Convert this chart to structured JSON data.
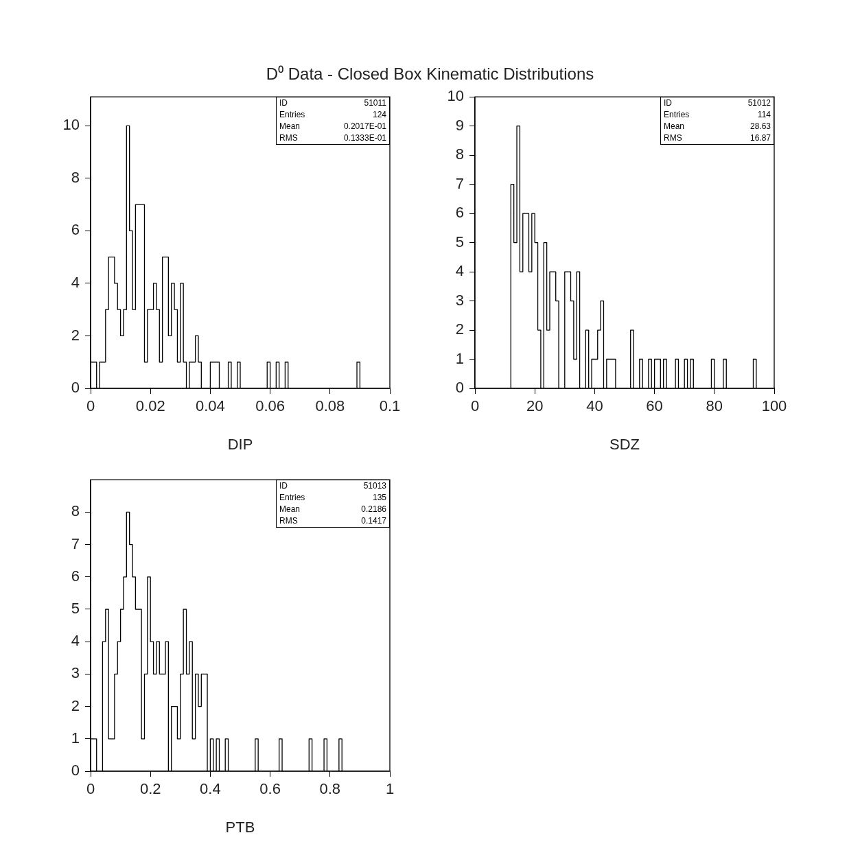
{
  "chart_data": [
    {
      "type": "histogram",
      "title": "D⁰ Data - Closed Box Kinematic Distributions",
      "xlabel": "DIP",
      "color": "#000000",
      "bins": [
        0,
        0.001,
        0.002,
        0.003,
        0.004,
        0.005,
        0.006,
        0.007,
        0.008,
        0.009,
        0.01,
        0.011,
        0.012,
        0.013,
        0.014,
        0.015,
        0.016,
        0.017,
        0.018,
        0.019,
        0.02,
        0.021,
        0.022,
        0.023,
        0.024,
        0.025,
        0.026,
        0.027,
        0.028,
        0.029,
        0.03,
        0.031,
        0.032,
        0.033,
        0.034,
        0.035,
        0.036,
        0.037,
        0.038,
        0.039,
        0.04,
        0.041,
        0.042,
        0.043,
        0.044,
        0.045,
        0.046,
        0.047,
        0.048,
        0.049,
        0.05,
        0.051,
        0.052,
        0.053,
        0.054,
        0.055,
        0.056,
        0.057,
        0.058,
        0.059,
        0.06,
        0.061,
        0.062,
        0.063,
        0.064,
        0.065,
        0.066,
        0.067,
        0.068,
        0.069,
        0.07,
        0.071,
        0.072,
        0.073,
        0.074,
        0.075,
        0.076,
        0.077,
        0.078,
        0.079,
        0.08,
        0.081,
        0.082,
        0.083,
        0.084,
        0.085,
        0.086,
        0.087,
        0.088,
        0.089,
        0.09,
        0.091,
        0.092,
        0.093,
        0.094,
        0.095,
        0.096,
        0.097,
        0.098,
        0.099,
        0.1
      ],
      "values": [
        1,
        1,
        0,
        1,
        1,
        3,
        5,
        5,
        4,
        3,
        2,
        3,
        10,
        6,
        3,
        7,
        7,
        7,
        1,
        3,
        3,
        4,
        3,
        1,
        5,
        5,
        2,
        4,
        3,
        1,
        4,
        1,
        0,
        1,
        1,
        2,
        1,
        0,
        0,
        0,
        1,
        1,
        1,
        0,
        0,
        0,
        1,
        0,
        0,
        1,
        0,
        0,
        0,
        0,
        0,
        0,
        0,
        0,
        0,
        1,
        0,
        0,
        1,
        0,
        0,
        1,
        0,
        0,
        0,
        0,
        0,
        0,
        0,
        0,
        0,
        0,
        0,
        0,
        0,
        0,
        0,
        0,
        0,
        0,
        0,
        0,
        0,
        0,
        0,
        1,
        0,
        0,
        0,
        0,
        0,
        0,
        0,
        0,
        0,
        0
      ],
      "xlim": [
        0,
        0.1
      ],
      "xticks": [
        0,
        0.02,
        0.04,
        0.06,
        0.08,
        0.1
      ],
      "ylim": [
        0,
        11.1
      ],
      "yticks": [
        0,
        2,
        4,
        6,
        8,
        10
      ],
      "annotations": [
        "ID 51011",
        "Entries 124",
        "Mean 0.2017E-01",
        "RMS 0.1333E-01"
      ]
    },
    {
      "type": "histogram",
      "xlabel": "SDZ",
      "color": "#000000",
      "bins": [
        0,
        1,
        2,
        3,
        4,
        5,
        6,
        7,
        8,
        9,
        10,
        11,
        12,
        13,
        14,
        15,
        16,
        17,
        18,
        19,
        20,
        21,
        22,
        23,
        24,
        25,
        26,
        27,
        28,
        29,
        30,
        31,
        32,
        33,
        34,
        35,
        36,
        37,
        38,
        39,
        40,
        41,
        42,
        43,
        44,
        45,
        46,
        47,
        48,
        49,
        50,
        51,
        52,
        53,
        54,
        55,
        56,
        57,
        58,
        59,
        60,
        61,
        62,
        63,
        64,
        65,
        66,
        67,
        68,
        69,
        70,
        71,
        72,
        73,
        74,
        75,
        76,
        77,
        78,
        79,
        80,
        81,
        82,
        83,
        84,
        85,
        86,
        87,
        88,
        89,
        90,
        91,
        92,
        93,
        94,
        95,
        96,
        97,
        98,
        99,
        100
      ],
      "values": [
        0,
        0,
        0,
        0,
        0,
        0,
        0,
        0,
        0,
        0,
        0,
        0,
        7,
        5,
        9,
        4,
        6,
        6,
        4,
        6,
        5,
        2,
        0,
        5,
        2,
        4,
        4,
        3,
        0,
        0,
        4,
        4,
        3,
        1,
        4,
        0,
        0,
        2,
        0,
        1,
        1,
        2,
        3,
        0,
        1,
        1,
        1,
        0,
        0,
        0,
        0,
        0,
        2,
        0,
        0,
        1,
        0,
        0,
        1,
        0,
        1,
        1,
        0,
        1,
        0,
        0,
        0,
        1,
        0,
        0,
        1,
        0,
        1,
        0,
        0,
        0,
        0,
        0,
        0,
        1,
        0,
        0,
        0,
        1,
        0,
        0,
        0,
        0,
        0,
        0,
        0,
        0,
        0,
        1,
        0,
        0,
        0,
        0,
        0,
        0
      ],
      "xlim": [
        0,
        100
      ],
      "xticks": [
        0,
        20,
        40,
        60,
        80,
        100
      ],
      "ylim": [
        0,
        10
      ],
      "yticks": [
        0,
        1,
        2,
        3,
        4,
        5,
        6,
        7,
        8,
        9,
        10
      ],
      "annotations": [
        "ID 51012",
        "Entries 114",
        "Mean 28.63",
        "RMS 16.87"
      ]
    },
    {
      "type": "histogram",
      "xlabel": "PTB",
      "color": "#000000",
      "bins": [
        0,
        0.01,
        0.02,
        0.03,
        0.04,
        0.05,
        0.06,
        0.07,
        0.08,
        0.09,
        0.1,
        0.11,
        0.12,
        0.13,
        0.14,
        0.15,
        0.16,
        0.17,
        0.18,
        0.19,
        0.2,
        0.21,
        0.22,
        0.23,
        0.24,
        0.25,
        0.26,
        0.27,
        0.28,
        0.29,
        0.3,
        0.31,
        0.32,
        0.33,
        0.34,
        0.35,
        0.36,
        0.37,
        0.38,
        0.39,
        0.4,
        0.41,
        0.42,
        0.43,
        0.44,
        0.45,
        0.46,
        0.47,
        0.48,
        0.49,
        0.5,
        0.51,
        0.52,
        0.53,
        0.54,
        0.55,
        0.56,
        0.57,
        0.58,
        0.59,
        0.6,
        0.61,
        0.62,
        0.63,
        0.64,
        0.65,
        0.66,
        0.67,
        0.68,
        0.69,
        0.7,
        0.71,
        0.72,
        0.73,
        0.74,
        0.75,
        0.76,
        0.77,
        0.78,
        0.79,
        0.8,
        0.81,
        0.82,
        0.83,
        0.84,
        0.85,
        0.86,
        0.87,
        0.88,
        0.89,
        0.9,
        0.91,
        0.92,
        0.93,
        0.94,
        0.95,
        0.96,
        0.97,
        0.98,
        0.99,
        1
      ],
      "values": [
        1,
        1,
        0,
        0,
        4,
        5,
        1,
        1,
        3,
        4,
        5,
        6,
        8,
        7,
        6,
        5,
        5,
        1,
        3,
        6,
        4,
        3,
        4,
        3,
        3,
        4,
        0,
        2,
        2,
        1,
        3,
        5,
        3,
        4,
        1,
        3,
        2,
        3,
        3,
        0,
        1,
        0,
        1,
        0,
        0,
        1,
        0,
        0,
        0,
        0,
        0,
        0,
        0,
        0,
        0,
        1,
        0,
        0,
        0,
        0,
        0,
        0,
        0,
        1,
        0,
        0,
        0,
        0,
        0,
        0,
        0,
        0,
        0,
        1,
        0,
        0,
        0,
        0,
        1,
        0,
        0,
        0,
        0,
        1,
        0,
        0,
        0,
        0,
        0,
        0,
        0,
        0,
        0,
        0,
        0,
        0,
        0,
        0,
        0,
        0
      ],
      "xlim": [
        0,
        1
      ],
      "xticks": [
        0,
        0.2,
        0.4,
        0.6,
        0.8,
        1
      ],
      "ylim": [
        0,
        9
      ],
      "yticks": [
        0,
        1,
        2,
        3,
        4,
        5,
        6,
        7,
        8
      ],
      "annotations": [
        "ID 51013",
        "Entries 135",
        "Mean 0.2186",
        "RMS 0.1417"
      ]
    }
  ]
}
